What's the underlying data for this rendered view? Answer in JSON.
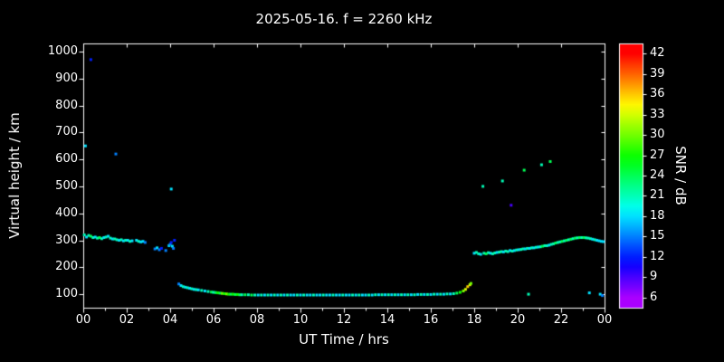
{
  "chart_data": {
    "type": "scatter",
    "title": "2025-05-16. f = 2260 kHz",
    "xlabel": "UT Time / hrs",
    "ylabel": "Virtual height / km",
    "colorbar_label": "SNR / dB",
    "xlim": [
      0,
      24
    ],
    "ylim": [
      50,
      1030
    ],
    "grid": false,
    "colormap": "rainbow purple(low) to red(high)",
    "colorbar_range": [
      4.5,
      43.5
    ],
    "x_tick_values": [
      0,
      2,
      4,
      6,
      8,
      10,
      12,
      14,
      16,
      18,
      20,
      22,
      24
    ],
    "x_tick_labels": [
      "00",
      "02",
      "04",
      "06",
      "08",
      "10",
      "12",
      "14",
      "16",
      "18",
      "20",
      "22",
      "00"
    ],
    "y_tick_values": [
      100,
      200,
      300,
      400,
      500,
      600,
      700,
      800,
      900,
      1000
    ],
    "y_tick_labels": [
      "100",
      "200",
      "300",
      "400",
      "500",
      "600",
      "700",
      "800",
      "900",
      "1000"
    ],
    "colorbar_tick_values": [
      6,
      9,
      12,
      15,
      18,
      21,
      24,
      27,
      30,
      33,
      36,
      39,
      42
    ],
    "colorbar_tick_labels": [
      "6",
      "9",
      "12",
      "15",
      "18",
      "21",
      "24",
      "27",
      "30",
      "33",
      "36",
      "39",
      "42"
    ],
    "colors": {
      "background": "#000000",
      "axis": "#ffffff",
      "text": "#ffffff"
    },
    "points_format": [
      "ut_hours",
      "virtual_height_km",
      "snr_db"
    ],
    "points": [
      [
        0.05,
        320,
        21
      ],
      [
        0.1,
        650,
        18
      ],
      [
        0.15,
        312,
        18
      ],
      [
        0.25,
        318,
        21
      ],
      [
        0.35,
        970,
        12
      ],
      [
        0.35,
        315,
        24
      ],
      [
        0.45,
        310,
        21
      ],
      [
        0.55,
        312,
        18
      ],
      [
        0.65,
        308,
        21
      ],
      [
        0.75,
        310,
        24
      ],
      [
        0.85,
        306,
        21
      ],
      [
        0.95,
        310,
        18
      ],
      [
        1.05,
        312,
        21
      ],
      [
        1.15,
        315,
        18
      ],
      [
        1.25,
        308,
        21
      ],
      [
        1.35,
        305,
        18
      ],
      [
        1.45,
        305,
        21
      ],
      [
        1.5,
        620,
        15
      ],
      [
        1.55,
        302,
        21
      ],
      [
        1.65,
        300,
        18
      ],
      [
        1.75,
        302,
        21
      ],
      [
        1.85,
        298,
        18
      ],
      [
        1.95,
        300,
        21
      ],
      [
        2.05,
        300,
        18
      ],
      [
        2.15,
        296,
        21
      ],
      [
        2.25,
        298,
        18
      ],
      [
        2.45,
        300,
        18
      ],
      [
        2.55,
        296,
        21
      ],
      [
        2.65,
        294,
        18
      ],
      [
        2.75,
        296,
        18
      ],
      [
        2.85,
        292,
        15
      ],
      [
        3.3,
        268,
        15
      ],
      [
        3.4,
        272,
        18
      ],
      [
        3.5,
        265,
        15
      ],
      [
        3.6,
        270,
        12
      ],
      [
        3.8,
        262,
        15
      ],
      [
        3.95,
        280,
        18
      ],
      [
        4.0,
        285,
        15
      ],
      [
        4.05,
        292,
        12
      ],
      [
        4.05,
        490,
        18
      ],
      [
        4.1,
        278,
        18
      ],
      [
        4.15,
        270,
        15
      ],
      [
        4.2,
        300,
        12
      ],
      [
        4.4,
        138,
        15
      ],
      [
        4.5,
        132,
        18
      ],
      [
        4.6,
        128,
        21
      ],
      [
        4.7,
        126,
        18
      ],
      [
        4.8,
        124,
        21
      ],
      [
        4.9,
        122,
        18
      ],
      [
        5.0,
        120,
        21
      ],
      [
        5.1,
        118,
        18
      ],
      [
        5.2,
        117,
        21
      ],
      [
        5.3,
        116,
        18
      ],
      [
        5.45,
        114,
        21
      ],
      [
        5.6,
        112,
        18
      ],
      [
        5.75,
        110,
        21
      ],
      [
        5.9,
        108,
        24
      ],
      [
        6.0,
        107,
        21
      ],
      [
        6.1,
        106,
        24
      ],
      [
        6.2,
        105,
        27
      ],
      [
        6.3,
        104,
        24
      ],
      [
        6.4,
        103,
        30
      ],
      [
        6.5,
        102,
        27
      ],
      [
        6.6,
        101,
        30
      ],
      [
        6.7,
        100,
        27
      ],
      [
        6.8,
        100,
        24
      ],
      [
        6.9,
        100,
        27
      ],
      [
        7.0,
        99,
        24
      ],
      [
        7.1,
        99,
        27
      ],
      [
        7.2,
        98,
        24
      ],
      [
        7.3,
        98,
        21
      ],
      [
        7.45,
        98,
        24
      ],
      [
        7.6,
        98,
        21
      ],
      [
        7.75,
        97,
        24
      ],
      [
        7.9,
        97,
        21
      ],
      [
        8.05,
        97,
        18
      ],
      [
        8.2,
        97,
        21
      ],
      [
        8.35,
        97,
        18
      ],
      [
        8.5,
        97,
        21
      ],
      [
        8.65,
        97,
        18
      ],
      [
        8.8,
        97,
        21
      ],
      [
        8.95,
        97,
        18
      ],
      [
        9.1,
        97,
        21
      ],
      [
        9.25,
        97,
        18
      ],
      [
        9.4,
        97,
        21
      ],
      [
        9.55,
        97,
        18
      ],
      [
        9.7,
        97,
        18
      ],
      [
        9.85,
        97,
        21
      ],
      [
        10.0,
        97,
        18
      ],
      [
        10.15,
        97,
        21
      ],
      [
        10.3,
        97,
        18
      ],
      [
        10.45,
        97,
        18
      ],
      [
        10.6,
        97,
        21
      ],
      [
        10.75,
        97,
        18
      ],
      [
        10.9,
        97,
        18
      ],
      [
        11.05,
        97,
        21
      ],
      [
        11.2,
        97,
        18
      ],
      [
        11.35,
        97,
        18
      ],
      [
        11.5,
        97,
        21
      ],
      [
        11.65,
        97,
        18
      ],
      [
        11.8,
        97,
        18
      ],
      [
        11.95,
        97,
        21
      ],
      [
        12.1,
        97,
        18
      ],
      [
        12.25,
        97,
        18
      ],
      [
        12.4,
        97,
        21
      ],
      [
        12.55,
        97,
        18
      ],
      [
        12.7,
        97,
        21
      ],
      [
        12.85,
        97,
        18
      ],
      [
        13.0,
        97,
        18
      ],
      [
        13.15,
        97,
        21
      ],
      [
        13.3,
        97,
        18
      ],
      [
        13.45,
        98,
        21
      ],
      [
        13.6,
        98,
        18
      ],
      [
        13.75,
        98,
        21
      ],
      [
        13.9,
        98,
        18
      ],
      [
        14.05,
        98,
        21
      ],
      [
        14.2,
        98,
        18
      ],
      [
        14.35,
        98,
        21
      ],
      [
        14.5,
        98,
        18
      ],
      [
        14.65,
        98,
        21
      ],
      [
        14.8,
        98,
        18
      ],
      [
        14.95,
        98,
        21
      ],
      [
        15.1,
        98,
        18
      ],
      [
        15.25,
        98,
        21
      ],
      [
        15.4,
        99,
        18
      ],
      [
        15.55,
        99,
        21
      ],
      [
        15.7,
        99,
        18
      ],
      [
        15.85,
        99,
        21
      ],
      [
        16.0,
        99,
        18
      ],
      [
        16.15,
        100,
        21
      ],
      [
        16.3,
        100,
        18
      ],
      [
        16.45,
        100,
        21
      ],
      [
        16.6,
        100,
        18
      ],
      [
        16.75,
        101,
        21
      ],
      [
        16.9,
        101,
        18
      ],
      [
        17.05,
        102,
        21
      ],
      [
        17.2,
        104,
        24
      ],
      [
        17.35,
        107,
        27
      ],
      [
        17.5,
        112,
        30
      ],
      [
        17.6,
        118,
        33
      ],
      [
        17.7,
        128,
        36
      ],
      [
        17.8,
        135,
        33
      ],
      [
        17.85,
        140,
        30
      ],
      [
        18.0,
        252,
        18
      ],
      [
        18.1,
        255,
        21
      ],
      [
        18.2,
        250,
        21
      ],
      [
        18.3,
        248,
        18
      ],
      [
        18.4,
        500,
        21
      ],
      [
        18.45,
        252,
        21
      ],
      [
        18.55,
        250,
        24
      ],
      [
        18.65,
        254,
        21
      ],
      [
        18.75,
        252,
        18
      ],
      [
        18.85,
        250,
        21
      ],
      [
        18.95,
        253,
        21
      ],
      [
        19.05,
        255,
        18
      ],
      [
        19.15,
        256,
        21
      ],
      [
        19.25,
        258,
        21
      ],
      [
        19.3,
        520,
        21
      ],
      [
        19.35,
        257,
        18
      ],
      [
        19.45,
        260,
        21
      ],
      [
        19.55,
        258,
        21
      ],
      [
        19.65,
        262,
        18
      ],
      [
        19.7,
        430,
        9
      ],
      [
        19.75,
        260,
        21
      ],
      [
        19.85,
        262,
        18
      ],
      [
        19.95,
        264,
        21
      ],
      [
        20.05,
        265,
        18
      ],
      [
        20.15,
        266,
        21
      ],
      [
        20.25,
        268,
        21
      ],
      [
        20.3,
        560,
        24
      ],
      [
        20.35,
        268,
        18
      ],
      [
        20.45,
        270,
        21
      ],
      [
        20.5,
        100,
        21
      ],
      [
        20.55,
        270,
        18
      ],
      [
        20.65,
        272,
        21
      ],
      [
        20.75,
        272,
        18
      ],
      [
        20.85,
        274,
        21
      ],
      [
        20.95,
        275,
        18
      ],
      [
        21.05,
        276,
        21
      ],
      [
        21.1,
        580,
        21
      ],
      [
        21.15,
        278,
        24
      ],
      [
        21.25,
        280,
        21
      ],
      [
        21.35,
        280,
        21
      ],
      [
        21.45,
        282,
        18
      ],
      [
        21.5,
        592,
        24
      ],
      [
        21.55,
        285,
        21
      ],
      [
        21.65,
        287,
        21
      ],
      [
        21.75,
        290,
        24
      ],
      [
        21.85,
        292,
        21
      ],
      [
        21.95,
        294,
        21
      ],
      [
        22.05,
        296,
        24
      ],
      [
        22.15,
        298,
        21
      ],
      [
        22.25,
        300,
        24
      ],
      [
        22.35,
        302,
        21
      ],
      [
        22.45,
        304,
        24
      ],
      [
        22.55,
        306,
        21
      ],
      [
        22.65,
        308,
        24
      ],
      [
        22.75,
        309,
        21
      ],
      [
        22.85,
        310,
        24
      ],
      [
        22.95,
        310,
        21
      ],
      [
        23.05,
        310,
        24
      ],
      [
        23.15,
        309,
        21
      ],
      [
        23.25,
        308,
        21
      ],
      [
        23.3,
        105,
        18
      ],
      [
        23.35,
        306,
        21
      ],
      [
        23.45,
        304,
        18
      ],
      [
        23.55,
        302,
        21
      ],
      [
        23.65,
        300,
        18
      ],
      [
        23.75,
        298,
        18
      ],
      [
        23.8,
        100,
        18
      ],
      [
        23.85,
        296,
        18
      ],
      [
        23.9,
        95,
        15
      ],
      [
        23.95,
        295,
        18
      ]
    ]
  }
}
